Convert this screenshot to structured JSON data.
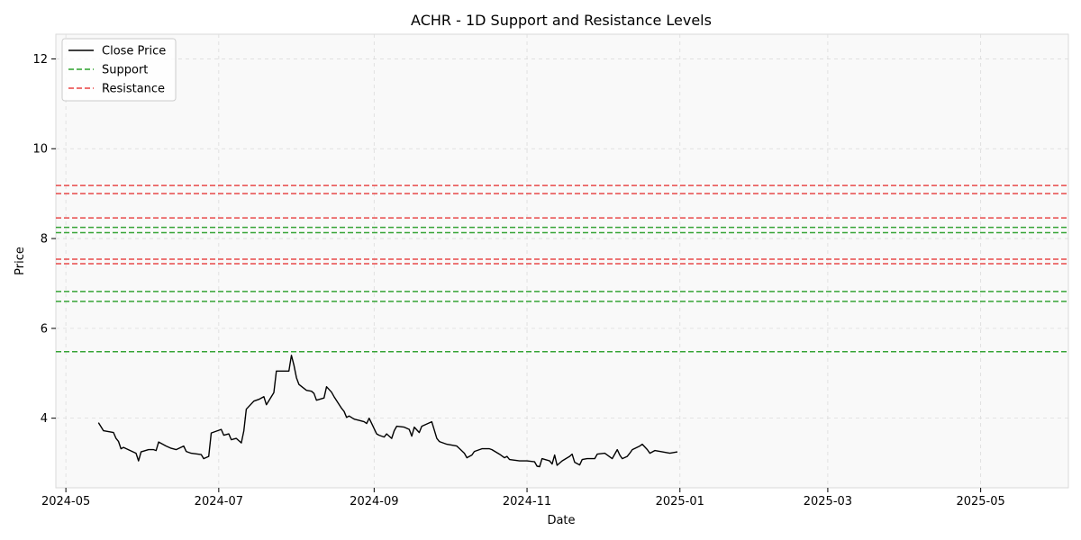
{
  "chart_data": {
    "type": "line",
    "title": "ACHR - 1D Support and Resistance Levels",
    "xlabel": "Date",
    "ylabel": "Price",
    "xlim": [
      "2024-04-27",
      "2025-06-05"
    ],
    "ylim": [
      2.45,
      12.55
    ],
    "grid": true,
    "legend_position": "top-left",
    "x_ticks": [
      "2024-05",
      "2024-07",
      "2024-09",
      "2024-11",
      "2025-01",
      "2025-03",
      "2025-05"
    ],
    "x_tick_dates": [
      "2024-05-01",
      "2024-07-01",
      "2024-09-01",
      "2024-11-01",
      "2025-01-01",
      "2025-03-01",
      "2025-05-01"
    ],
    "y_ticks": [
      4,
      6,
      8,
      10,
      12
    ],
    "legend": [
      {
        "label": "Close Price",
        "color": "#000000",
        "style": "solid"
      },
      {
        "label": "Support",
        "color": "#2ca02c",
        "style": "dashed"
      },
      {
        "label": "Resistance",
        "color": "#e84040",
        "style": "dashed"
      }
    ],
    "support_levels": [
      5.48,
      6.6,
      6.82,
      8.13,
      8.25
    ],
    "resistance_levels": [
      7.44,
      7.54,
      8.46,
      9.0,
      9.18
    ],
    "series": [
      {
        "name": "Close Price",
        "color": "#000000",
        "points": [
          [
            "2024-05-14",
            3.9
          ],
          [
            "2024-05-16",
            3.72
          ],
          [
            "2024-05-20",
            3.68
          ],
          [
            "2024-05-21",
            3.55
          ],
          [
            "2024-05-22",
            3.48
          ],
          [
            "2024-05-23",
            3.32
          ],
          [
            "2024-05-24",
            3.35
          ],
          [
            "2024-05-29",
            3.22
          ],
          [
            "2024-05-30",
            3.05
          ],
          [
            "2024-05-31",
            3.25
          ],
          [
            "2024-06-03",
            3.3
          ],
          [
            "2024-06-05",
            3.3
          ],
          [
            "2024-06-06",
            3.28
          ],
          [
            "2024-06-07",
            3.47
          ],
          [
            "2024-06-10",
            3.38
          ],
          [
            "2024-06-12",
            3.33
          ],
          [
            "2024-06-14",
            3.3
          ],
          [
            "2024-06-17",
            3.38
          ],
          [
            "2024-06-18",
            3.26
          ],
          [
            "2024-06-20",
            3.22
          ],
          [
            "2024-06-24",
            3.19
          ],
          [
            "2024-06-25",
            3.1
          ],
          [
            "2024-06-27",
            3.15
          ],
          [
            "2024-06-28",
            3.67
          ],
          [
            "2024-07-02",
            3.75
          ],
          [
            "2024-07-03",
            3.62
          ],
          [
            "2024-07-05",
            3.65
          ],
          [
            "2024-07-06",
            3.52
          ],
          [
            "2024-07-08",
            3.55
          ],
          [
            "2024-07-10",
            3.45
          ],
          [
            "2024-07-11",
            3.72
          ],
          [
            "2024-07-12",
            4.2
          ],
          [
            "2024-07-15",
            4.38
          ],
          [
            "2024-07-17",
            4.42
          ],
          [
            "2024-07-19",
            4.48
          ],
          [
            "2024-07-20",
            4.3
          ],
          [
            "2024-07-23",
            4.57
          ],
          [
            "2024-07-24",
            5.05
          ],
          [
            "2024-07-26",
            5.05
          ],
          [
            "2024-07-29",
            5.05
          ],
          [
            "2024-07-30",
            5.4
          ],
          [
            "2024-07-31",
            5.18
          ],
          [
            "2024-08-01",
            4.9
          ],
          [
            "2024-08-02",
            4.75
          ],
          [
            "2024-08-05",
            4.62
          ],
          [
            "2024-08-07",
            4.6
          ],
          [
            "2024-08-08",
            4.55
          ],
          [
            "2024-08-09",
            4.4
          ],
          [
            "2024-08-12",
            4.45
          ],
          [
            "2024-08-13",
            4.7
          ],
          [
            "2024-08-15",
            4.58
          ],
          [
            "2024-08-16",
            4.48
          ],
          [
            "2024-08-19",
            4.22
          ],
          [
            "2024-08-20",
            4.15
          ],
          [
            "2024-08-21",
            4.02
          ],
          [
            "2024-08-22",
            4.05
          ],
          [
            "2024-08-24",
            3.98
          ],
          [
            "2024-08-26",
            3.95
          ],
          [
            "2024-08-28",
            3.92
          ],
          [
            "2024-08-29",
            3.88
          ],
          [
            "2024-08-30",
            4.0
          ],
          [
            "2024-09-02",
            3.65
          ],
          [
            "2024-09-03",
            3.62
          ],
          [
            "2024-09-05",
            3.58
          ],
          [
            "2024-09-06",
            3.65
          ],
          [
            "2024-09-08",
            3.55
          ],
          [
            "2024-09-09",
            3.72
          ],
          [
            "2024-09-10",
            3.82
          ],
          [
            "2024-09-13",
            3.8
          ],
          [
            "2024-09-15",
            3.75
          ],
          [
            "2024-09-16",
            3.6
          ],
          [
            "2024-09-17",
            3.8
          ],
          [
            "2024-09-19",
            3.68
          ],
          [
            "2024-09-20",
            3.82
          ],
          [
            "2024-09-24",
            3.92
          ],
          [
            "2024-09-26",
            3.55
          ],
          [
            "2024-09-27",
            3.48
          ],
          [
            "2024-09-30",
            3.42
          ],
          [
            "2024-10-04",
            3.38
          ],
          [
            "2024-10-07",
            3.22
          ],
          [
            "2024-10-08",
            3.12
          ],
          [
            "2024-10-10",
            3.18
          ],
          [
            "2024-10-11",
            3.26
          ],
          [
            "2024-10-14",
            3.32
          ],
          [
            "2024-10-17",
            3.32
          ],
          [
            "2024-10-18",
            3.3
          ],
          [
            "2024-10-21",
            3.2
          ],
          [
            "2024-10-23",
            3.12
          ],
          [
            "2024-10-24",
            3.15
          ],
          [
            "2024-10-25",
            3.08
          ],
          [
            "2024-10-29",
            3.05
          ],
          [
            "2024-11-01",
            3.05
          ],
          [
            "2024-11-04",
            3.03
          ],
          [
            "2024-11-05",
            2.93
          ],
          [
            "2024-11-06",
            2.92
          ],
          [
            "2024-11-07",
            3.1
          ],
          [
            "2024-11-10",
            3.05
          ],
          [
            "2024-11-11",
            2.98
          ],
          [
            "2024-11-12",
            3.18
          ],
          [
            "2024-11-13",
            2.95
          ],
          [
            "2024-11-15",
            3.05
          ],
          [
            "2024-11-18",
            3.15
          ],
          [
            "2024-11-19",
            3.2
          ],
          [
            "2024-11-20",
            3.02
          ],
          [
            "2024-11-22",
            2.96
          ],
          [
            "2024-11-23",
            3.08
          ],
          [
            "2024-11-25",
            3.1
          ],
          [
            "2024-11-28",
            3.1
          ],
          [
            "2024-11-29",
            3.2
          ],
          [
            "2024-12-02",
            3.22
          ],
          [
            "2024-12-03",
            3.18
          ],
          [
            "2024-12-05",
            3.1
          ],
          [
            "2024-12-06",
            3.2
          ],
          [
            "2024-12-07",
            3.3
          ],
          [
            "2024-12-08",
            3.18
          ],
          [
            "2024-12-09",
            3.1
          ],
          [
            "2024-12-11",
            3.15
          ],
          [
            "2024-12-12",
            3.22
          ],
          [
            "2024-12-13",
            3.3
          ],
          [
            "2024-12-16",
            3.38
          ],
          [
            "2024-12-17",
            3.42
          ],
          [
            "2024-12-19",
            3.3
          ],
          [
            "2024-12-20",
            3.22
          ],
          [
            "2024-12-22",
            3.28
          ],
          [
            "2024-12-25",
            3.25
          ],
          [
            "2024-12-28",
            3.22
          ],
          [
            "2024-12-31",
            3.25
          ]
        ]
      }
    ]
  }
}
